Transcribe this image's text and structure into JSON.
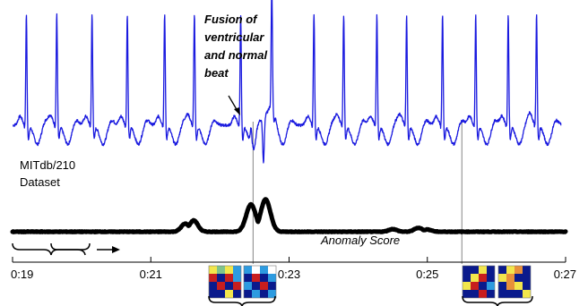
{
  "chart_data": {
    "type": "line",
    "title": "",
    "xlabel": "",
    "ylabel": "",
    "x_ticks": [
      "0:19",
      "0:21",
      "0:23",
      "0:25",
      "0:27"
    ],
    "xlim": [
      "0:19",
      "0:27"
    ],
    "dataset_label": [
      "MITdb/210",
      "Dataset"
    ],
    "annotation": [
      "Fusion of",
      "ventricular",
      "and normal",
      "beat"
    ],
    "grid": false,
    "series": [
      {
        "name": "",
        "color": "#1a1adf",
        "role": "ecg-signal",
        "beats_at": [
          "0:19.20",
          "0:19.64",
          "0:20.15",
          "0:20.66",
          "0:21.20",
          "0:21.63",
          "0:22.30",
          "0:22.75",
          "0:23.36",
          "0:23.79",
          "0:24.27",
          "0:24.70",
          "0:25.22",
          "0:25.70",
          "0:26.17",
          "0:26.58"
        ],
        "fusion_beat_at": "0:22.45",
        "pvc_at": "0:22.63"
      },
      {
        "name": "Anomaly Score",
        "color": "#000000",
        "role": "anomaly-score",
        "baseline": 0.0,
        "peaks": [
          {
            "at": "0:21.50",
            "value": 0.25
          },
          {
            "at": "0:21.62",
            "value": 0.35
          },
          {
            "at": "0:22.45",
            "value": 0.85
          },
          {
            "at": "0:22.66",
            "value": 1.0
          },
          {
            "at": "0:24.50",
            "value": 0.08
          },
          {
            "at": "0:24.87",
            "value": 0.12
          },
          {
            "at": "0:25.00",
            "value": 0.07
          }
        ]
      }
    ],
    "marker_lines_at": [
      "0:22.48",
      "0:25.50"
    ],
    "patch_colors": [
      "#0a1a8c",
      "#c81e1e",
      "#f2e64c",
      "#2d9be0",
      "#e8903a",
      "#7fc48a",
      "#ffffff"
    ]
  }
}
